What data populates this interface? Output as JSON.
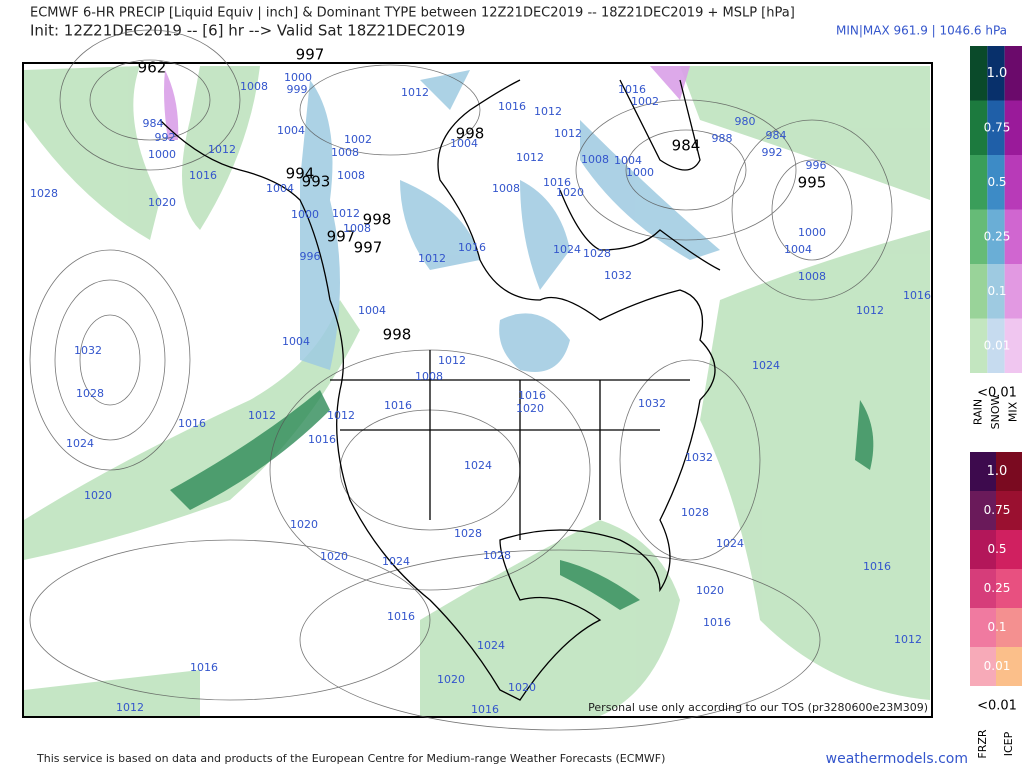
{
  "header": {
    "title": "ECMWF 6-HR PRECIP [Liquid Equiv | inch] & Dominant TYPE between 12Z21DEC2019 -- 18Z21DEC2019 + MSLP [hPa]",
    "subtitle": "Init: 12Z21DEC2019 -- [6] hr --> Valid Sat 18Z21DEC2019",
    "minmax": "MIN|MAX 961.9 | 1046.6 hPa"
  },
  "map": {
    "centers": [
      "962",
      "997",
      "994",
      "993",
      "998",
      "997",
      "997",
      "998",
      "984",
      "995",
      "998"
    ],
    "isobar_labels": [
      "1008",
      "1000",
      "999",
      "1004",
      "1012",
      "1016",
      "1020",
      "1028",
      "984",
      "992",
      "1000",
      "1012",
      "1016",
      "1012",
      "1012",
      "1008",
      "1004",
      "1000",
      "1016",
      "1002",
      "1016",
      "1020",
      "1024",
      "1028",
      "1032",
      "988",
      "980",
      "984",
      "992",
      "996",
      "1000",
      "1004",
      "1008",
      "1012",
      "1016",
      "1024",
      "1032",
      "1028",
      "1024",
      "1020",
      "1016",
      "1012",
      "1004",
      "1004",
      "1012",
      "1008",
      "1012",
      "1016",
      "1016",
      "1020",
      "1016",
      "1032",
      "1032",
      "1024",
      "1028",
      "1024",
      "1028",
      "1028",
      "1020",
      "1020",
      "1024",
      "1016",
      "1016",
      "1012",
      "1020",
      "1016",
      "1016",
      "1012",
      "1024",
      "1020",
      "1020",
      "1016",
      "1016",
      "1012",
      "1008",
      "1012",
      "1008",
      "1004",
      "1000",
      "996",
      "1002",
      "1008",
      "1004",
      "1012",
      "1008"
    ],
    "disclaimer": "Personal use only according to our TOS (pr3280600e23M309)"
  },
  "legend": {
    "rain_snow_mix": {
      "levels": [
        "1.0",
        "0.75",
        "0.5",
        "0.25",
        "0.1",
        "0.01"
      ],
      "below": "<0.01",
      "types": [
        "RAIN",
        "SNOW",
        "MIX"
      ]
    },
    "frzr_icep": {
      "levels": [
        "1.0",
        "0.75",
        "0.5",
        "0.25",
        "0.1",
        "0.01"
      ],
      "below": "<0.01",
      "types": [
        "FRZR",
        "ICEP"
      ]
    }
  },
  "footer": {
    "source": "This service is based on data and products of the European Centre for Medium-range Weather Forecasts (ECMWF)",
    "site": "weathermodels.com"
  }
}
